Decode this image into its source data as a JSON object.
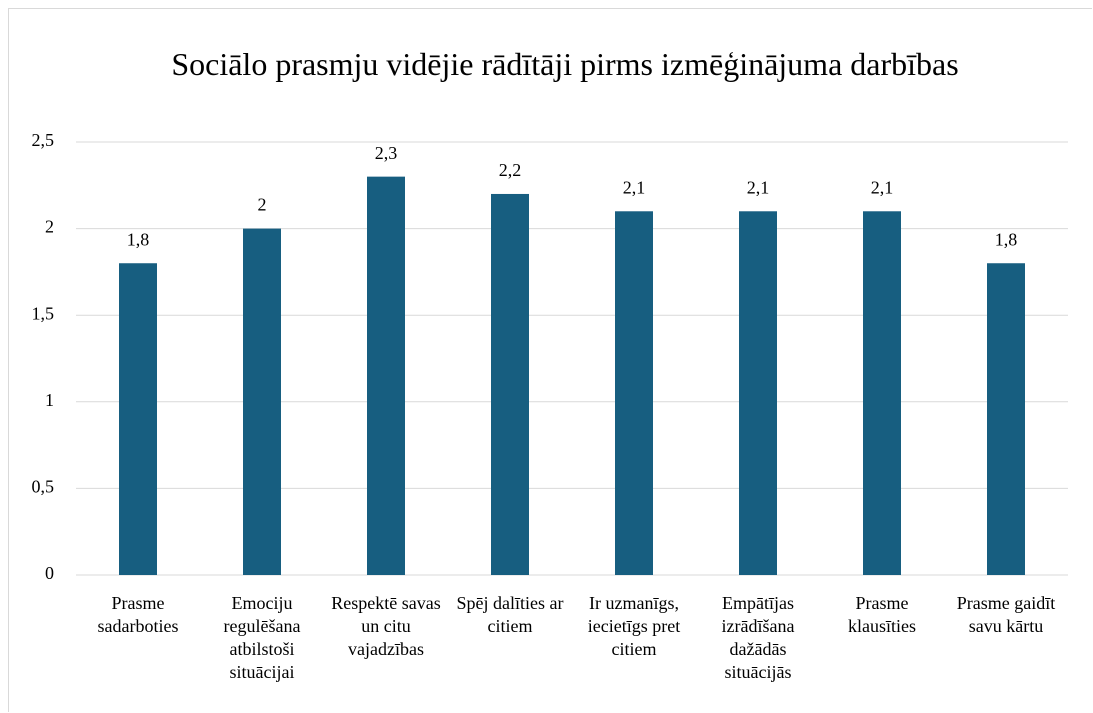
{
  "chart_data": {
    "type": "bar",
    "title": "Sociālo prasmju vidējie rādītāji pirms izmēģinājuma darbības",
    "categories": [
      "Prasme sadarboties",
      "Emociju regulēšana atbilstoši situācijai",
      "Respektē savas un citu vajadzības",
      "Spēj dalīties ar citiem",
      "Ir uzmanīgs, iecietīgs pret citiem",
      "Empātījas izrādīšana dažādās situācijās",
      "Prasme klausīties",
      "Prasme gaidīt savu kārtu"
    ],
    "values": [
      1.8,
      2,
      2.3,
      2.2,
      2.1,
      2.1,
      2.1,
      1.8
    ],
    "value_labels": [
      "1,8",
      "2",
      "2,3",
      "2,2",
      "2,1",
      "2,1",
      "2,1",
      "1,8"
    ],
    "color": "#175e80",
    "ylim": [
      0,
      2.5
    ],
    "yticks": [
      0,
      {
        "value": 0.5,
        "label": "0,5"
      },
      1,
      {
        "value": 1.5,
        "label": "1,5"
      },
      2,
      {
        "value": 2.5,
        "label": "2,5"
      }
    ],
    "grid": true
  }
}
